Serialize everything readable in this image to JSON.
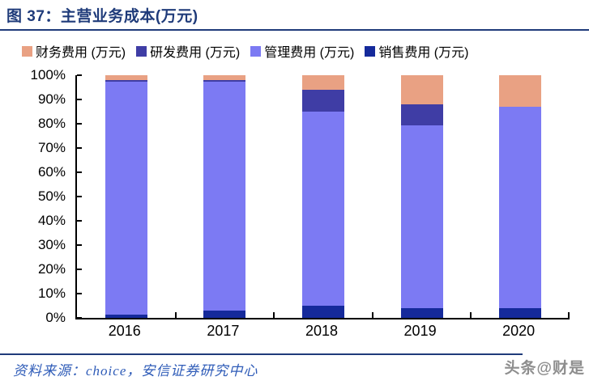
{
  "header": {
    "title": "图 37：主营业务成本(万元)"
  },
  "legend": [
    {
      "label": "财务费用 (万元)",
      "color": "#E9A183"
    },
    {
      "label": "研发费用 (万元)",
      "color": "#3F3DA5"
    },
    {
      "label": "管理费用 (万元)",
      "color": "#7C7AF3"
    },
    {
      "label": "销售费用 (万元)",
      "color": "#152A9B"
    }
  ],
  "chart_data": {
    "type": "bar",
    "stacked": true,
    "percent": true,
    "title": "主营业务成本(万元)",
    "categories": [
      "2016",
      "2017",
      "2018",
      "2019",
      "2020"
    ],
    "series": [
      {
        "name": "销售费用 (万元)",
        "color": "#152A9B",
        "values": [
          1.5,
          3,
          5,
          4,
          4
        ]
      },
      {
        "name": "管理费用 (万元)",
        "color": "#7C7AF3",
        "values": [
          96,
          94.5,
          80,
          75.5,
          83
        ]
      },
      {
        "name": "研发费用 (万元)",
        "color": "#3F3DA5",
        "values": [
          0.5,
          0.5,
          9,
          8.5,
          0
        ]
      },
      {
        "name": "财务费用 (万元)",
        "color": "#E9A183",
        "values": [
          2,
          2,
          6,
          12,
          13
        ]
      }
    ],
    "xlabel": "",
    "ylabel": "",
    "ylim": [
      0,
      100
    ],
    "yticks": [
      "100%",
      "90%",
      "80%",
      "70%",
      "60%",
      "50%",
      "40%",
      "30%",
      "20%",
      "10%",
      "0%"
    ],
    "grid": false,
    "legend_position": "top"
  },
  "footer": {
    "source": "资料来源：choice，安信证券研究中心",
    "watermark": "头条@财是"
  }
}
